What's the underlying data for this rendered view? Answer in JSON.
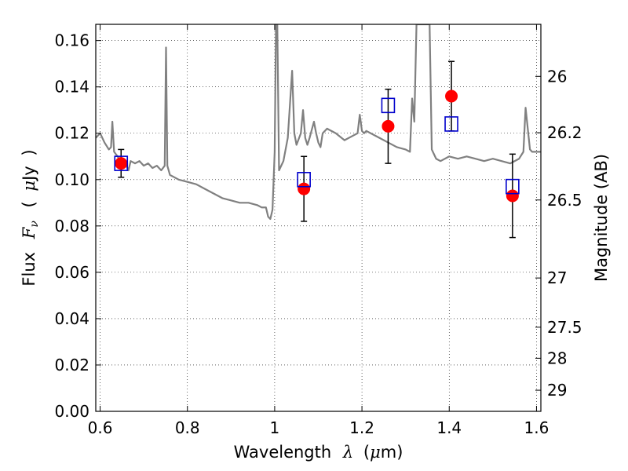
{
  "chart_data": {
    "type": "scatter",
    "xlabel": {
      "prefix": "Wavelength",
      "symbol": "λ",
      "unit_open": "(",
      "unit_mu": "μ",
      "unit_rest": "m)"
    },
    "ylabel": {
      "prefix": "Flux",
      "symbol": "F",
      "subscript": "ν",
      "unit_open": "(",
      "unit_mu": "μ",
      "unit_rest": "Jy",
      "unit_close": ")"
    },
    "ylabel_right": "Magnitude (AB)",
    "xlim": [
      0.59,
      1.61
    ],
    "ylim": [
      0.0,
      0.167
    ],
    "grid": true,
    "x_ticks": [
      "0.6",
      "0.8",
      "1",
      "1.2",
      "1.4",
      "1.6"
    ],
    "x_tick_values": [
      0.6,
      0.8,
      1.0,
      1.2,
      1.4,
      1.6
    ],
    "y_ticks": [
      "0.00",
      "0.02",
      "0.04",
      "0.06",
      "0.08",
      "0.10",
      "0.12",
      "0.14",
      "0.16"
    ],
    "y_tick_values": [
      0.0,
      0.02,
      0.04,
      0.06,
      0.08,
      0.1,
      0.12,
      0.14,
      0.16
    ],
    "right_ticks": [
      "26",
      "26.2",
      "26.5",
      "27",
      "27.5",
      "28",
      "29"
    ],
    "right_tick_values": [
      26.0,
      26.2,
      26.5,
      27.0,
      27.5,
      28.0,
      29.0
    ],
    "series": [
      {
        "kind": "line",
        "color": "#808080",
        "x": [
          0.59,
          0.6,
          0.61,
          0.62,
          0.625,
          0.628,
          0.632,
          0.64,
          0.65,
          0.66,
          0.665,
          0.67,
          0.68,
          0.69,
          0.7,
          0.71,
          0.72,
          0.73,
          0.74,
          0.748,
          0.751,
          0.754,
          0.76,
          0.77,
          0.78,
          0.8,
          0.82,
          0.84,
          0.86,
          0.88,
          0.9,
          0.92,
          0.94,
          0.96,
          0.97,
          0.98,
          0.985,
          0.99,
          0.995,
          1.0,
          1.003,
          1.006,
          1.01,
          1.02,
          1.03,
          1.04,
          1.045,
          1.05,
          1.06,
          1.065,
          1.07,
          1.075,
          1.08,
          1.09,
          1.095,
          1.1,
          1.105,
          1.11,
          1.12,
          1.14,
          1.16,
          1.18,
          1.19,
          1.195,
          1.2,
          1.205,
          1.21,
          1.22,
          1.24,
          1.26,
          1.28,
          1.3,
          1.31,
          1.315,
          1.32,
          1.325,
          1.33,
          1.335,
          1.34,
          1.345,
          1.35,
          1.355,
          1.36,
          1.37,
          1.38,
          1.4,
          1.42,
          1.44,
          1.46,
          1.48,
          1.5,
          1.52,
          1.54,
          1.56,
          1.57,
          1.575,
          1.58,
          1.585,
          1.59,
          1.61
        ],
        "y": [
          0.118,
          0.12,
          0.116,
          0.113,
          0.114,
          0.125,
          0.112,
          0.11,
          0.107,
          0.106,
          0.104,
          0.108,
          0.107,
          0.108,
          0.106,
          0.107,
          0.105,
          0.106,
          0.104,
          0.106,
          0.157,
          0.106,
          0.102,
          0.101,
          0.1,
          0.099,
          0.098,
          0.096,
          0.094,
          0.092,
          0.091,
          0.09,
          0.09,
          0.089,
          0.088,
          0.088,
          0.084,
          0.083,
          0.087,
          0.112,
          0.167,
          0.167,
          0.104,
          0.108,
          0.118,
          0.147,
          0.12,
          0.115,
          0.12,
          0.13,
          0.118,
          0.115,
          0.118,
          0.125,
          0.12,
          0.116,
          0.114,
          0.12,
          0.122,
          0.12,
          0.117,
          0.119,
          0.12,
          0.128,
          0.121,
          0.12,
          0.121,
          0.12,
          0.118,
          0.116,
          0.114,
          0.113,
          0.112,
          0.135,
          0.125,
          0.167,
          0.167,
          0.167,
          0.167,
          0.167,
          0.167,
          0.167,
          0.113,
          0.109,
          0.108,
          0.11,
          0.109,
          0.11,
          0.109,
          0.108,
          0.109,
          0.108,
          0.107,
          0.109,
          0.112,
          0.131,
          0.122,
          0.113,
          0.112,
          0.112
        ]
      },
      {
        "kind": "points",
        "marker": "circle",
        "color": "#ff0000",
        "x": [
          0.648,
          1.067,
          1.26,
          1.405,
          1.545
        ],
        "y": [
          0.107,
          0.096,
          0.123,
          0.136,
          0.093
        ],
        "yerr": [
          0.006,
          0.014,
          0.016,
          0.015,
          0.018
        ]
      },
      {
        "kind": "points",
        "marker": "open-square",
        "color": "#0000cc",
        "x": [
          0.648,
          1.067,
          1.26,
          1.405,
          1.545
        ],
        "y": [
          0.107,
          0.1,
          0.132,
          0.124,
          0.097
        ]
      }
    ]
  }
}
